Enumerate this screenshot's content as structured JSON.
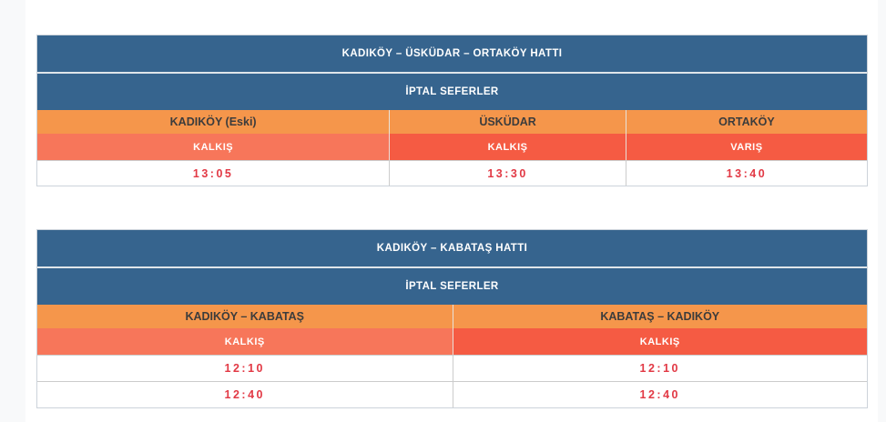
{
  "page": {
    "background_color": "#ffffff",
    "edge_strip_color": "#f8f9fa"
  },
  "colors": {
    "header_blue": "#36648E",
    "column_orange": "#F5964B",
    "type_salmon": "#F7765A",
    "type_red": "#F55B43",
    "time_text_red": "#E23945",
    "column_header_text": "#3C3C3C"
  },
  "tables": [
    {
      "title": "KADIKÖY – ÜSKÜDAR – ORTAKÖY HATTI",
      "subtitle": "İPTAL SEFERLER",
      "columns": [
        {
          "label": "KADIKÖY (Eski)",
          "type_label": "KALKIŞ",
          "variant": "salmon"
        },
        {
          "label": "ÜSKÜDAR",
          "type_label": "KALKIŞ",
          "variant": "red"
        },
        {
          "label": "ORTAKÖY",
          "type_label": "VARIŞ",
          "variant": "red"
        }
      ],
      "rows": [
        [
          "13:05",
          "13:30",
          "13:40"
        ]
      ]
    },
    {
      "title": "KADIKÖY – KABATAŞ HATTI",
      "subtitle": "İPTAL SEFERLER",
      "columns": [
        {
          "label": "KADIKÖY – KABATAŞ",
          "type_label": "KALKIŞ",
          "variant": "salmon"
        },
        {
          "label": "KABATAŞ – KADIKÖY",
          "type_label": "KALKIŞ",
          "variant": "red"
        }
      ],
      "rows": [
        [
          "12:10",
          "12:10"
        ],
        [
          "12:40",
          "12:40"
        ]
      ]
    }
  ]
}
